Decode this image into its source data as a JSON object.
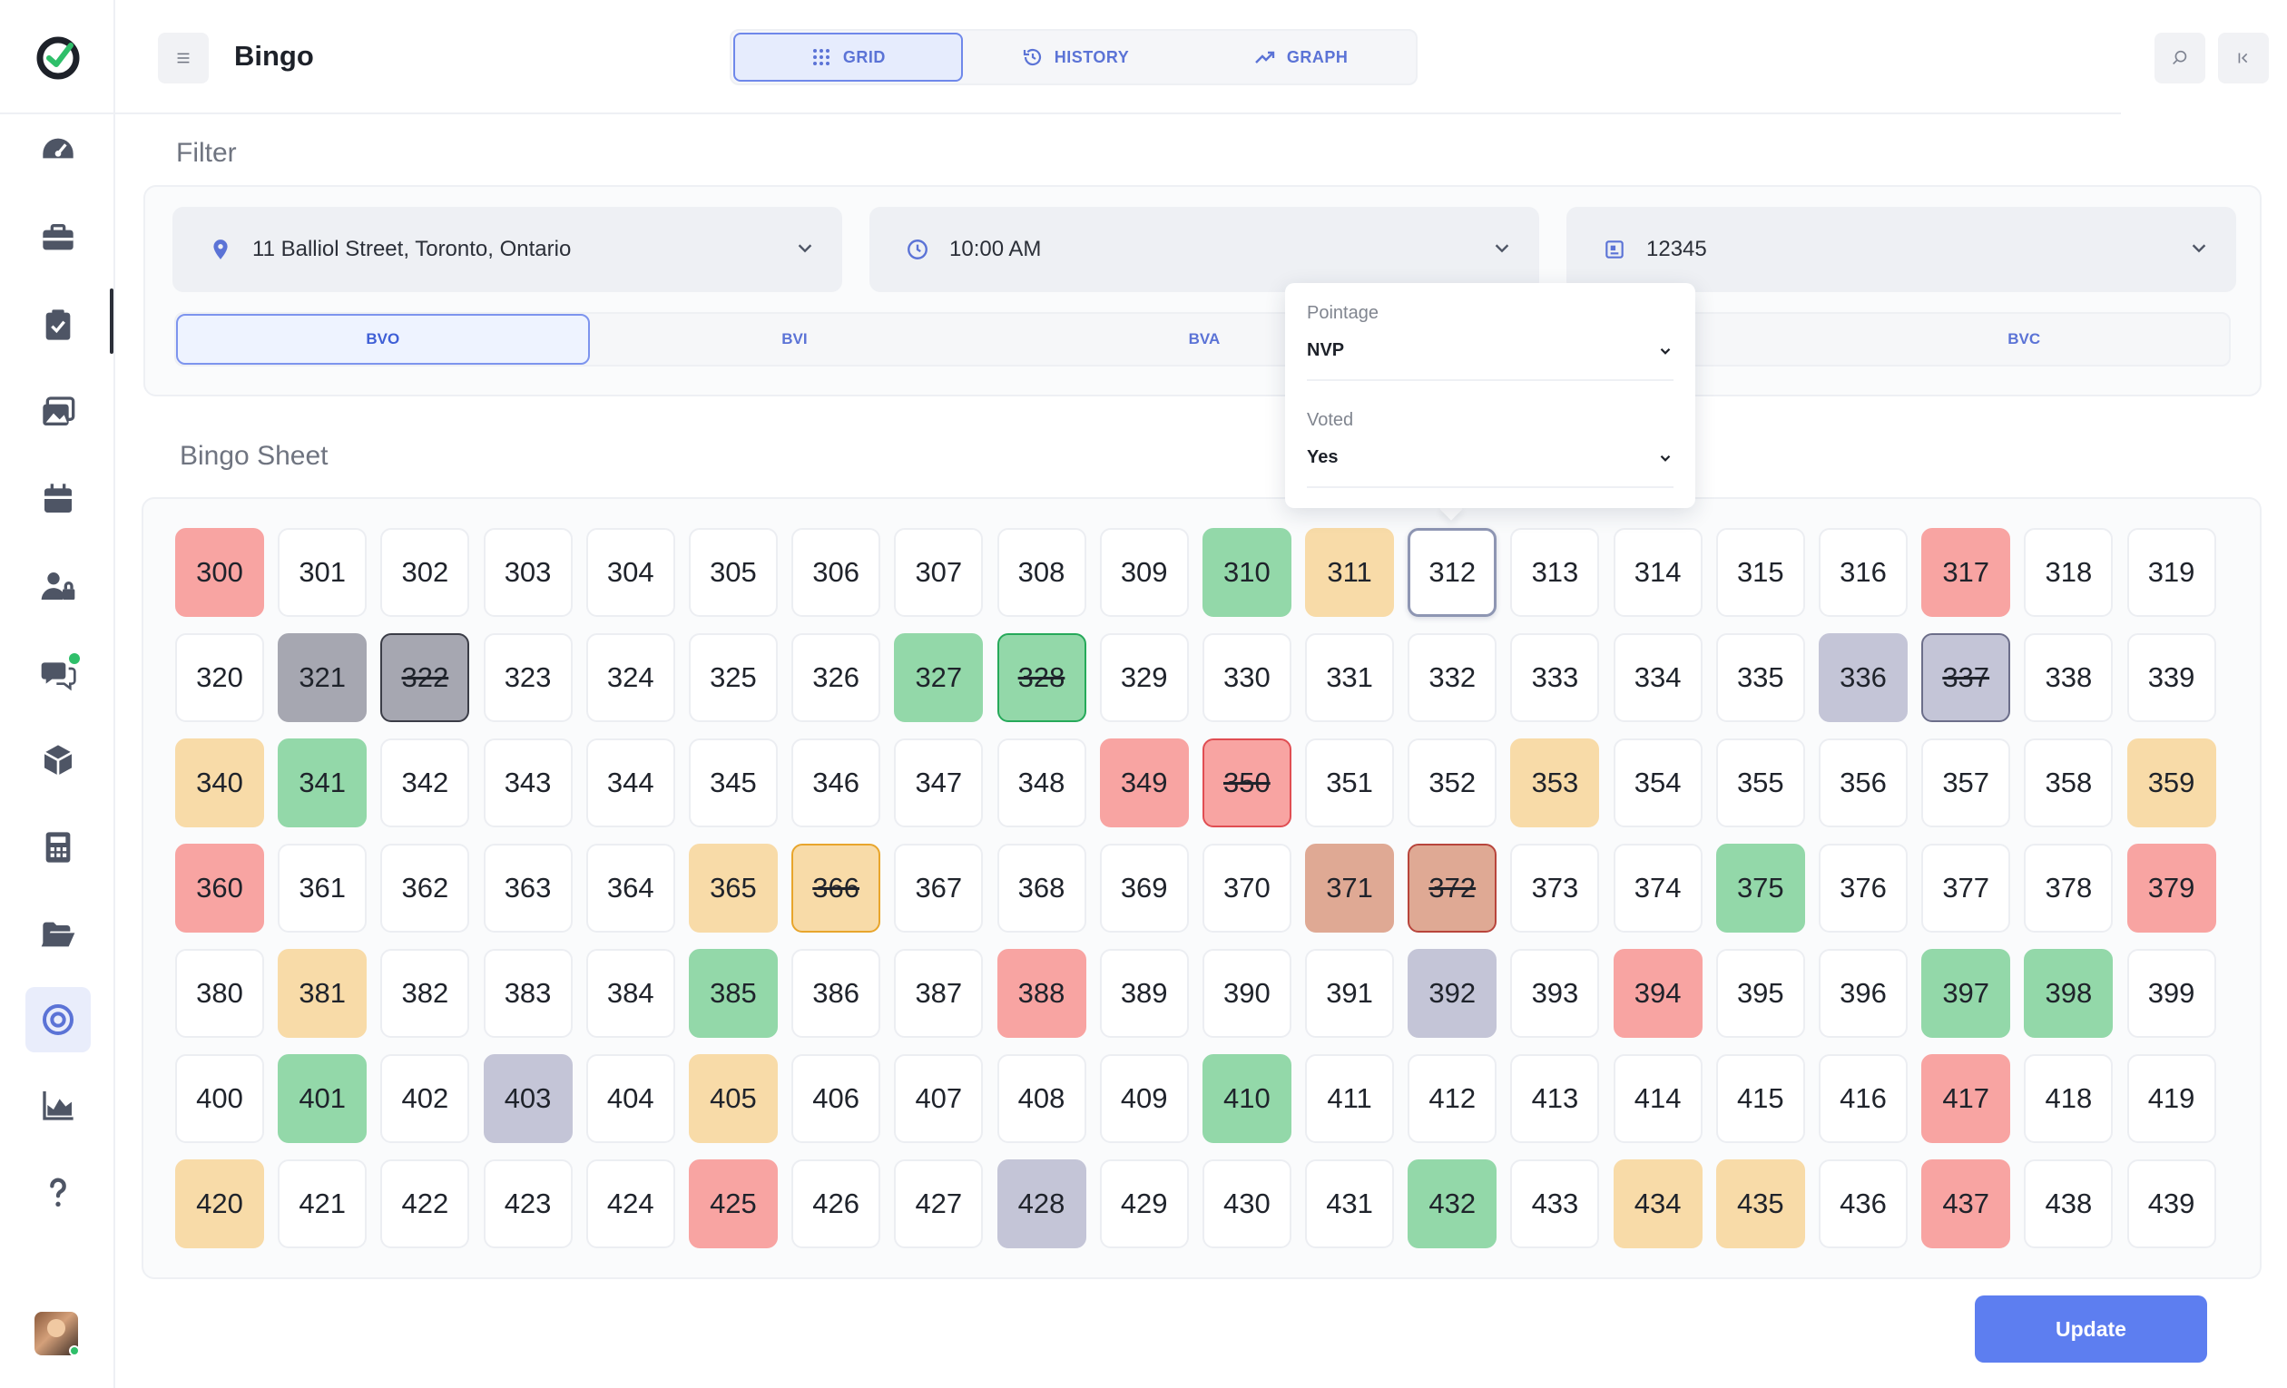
{
  "header": {
    "title": "Bingo",
    "tabs": [
      {
        "label": "GRID",
        "icon": "grid-dots-icon",
        "active": true
      },
      {
        "label": "HISTORY",
        "icon": "history-icon",
        "active": false
      },
      {
        "label": "GRAPH",
        "icon": "graph-trend-icon",
        "active": false
      }
    ]
  },
  "sidebar": {
    "items": [
      "dashboard-gauge-icon",
      "briefcase-icon",
      "clipboard-check-icon",
      "gallery-icon",
      "calendar-icon",
      "user-lock-icon",
      "chat-icon",
      "cube-icon",
      "calculator-icon",
      "folder-open-icon",
      "target-icon",
      "area-chart-icon",
      "help-icon"
    ],
    "active_item": "target-icon"
  },
  "filter": {
    "title": "Filter",
    "address": "11 Balliol Street, Toronto, Ontario",
    "time": "10:00 AM",
    "code": "12345",
    "segments": [
      "BVO",
      "BVI",
      "BVA",
      "",
      "BVC"
    ],
    "active_segment": "BVO"
  },
  "popover": {
    "pointage_label": "Pointage",
    "pointage_value": "NVP",
    "voted_label": "Voted",
    "voted_value": "Yes"
  },
  "bingo": {
    "title": "Bingo Sheet",
    "selected": 312,
    "cells": [
      {
        "n": "300",
        "s": "red"
      },
      {
        "n": "301",
        "s": ""
      },
      {
        "n": "302",
        "s": ""
      },
      {
        "n": "303",
        "s": ""
      },
      {
        "n": "304",
        "s": ""
      },
      {
        "n": "305",
        "s": ""
      },
      {
        "n": "306",
        "s": ""
      },
      {
        "n": "307",
        "s": ""
      },
      {
        "n": "308",
        "s": ""
      },
      {
        "n": "309",
        "s": ""
      },
      {
        "n": "310",
        "s": "green"
      },
      {
        "n": "311",
        "s": "yellow"
      },
      {
        "n": "312",
        "s": "selected"
      },
      {
        "n": "313",
        "s": ""
      },
      {
        "n": "314",
        "s": ""
      },
      {
        "n": "315",
        "s": ""
      },
      {
        "n": "316",
        "s": ""
      },
      {
        "n": "317",
        "s": "red"
      },
      {
        "n": "318",
        "s": ""
      },
      {
        "n": "319",
        "s": ""
      },
      {
        "n": "320",
        "s": ""
      },
      {
        "n": "321",
        "s": "gray"
      },
      {
        "n": "322",
        "s": "gray strike"
      },
      {
        "n": "323",
        "s": ""
      },
      {
        "n": "324",
        "s": ""
      },
      {
        "n": "325",
        "s": ""
      },
      {
        "n": "326",
        "s": ""
      },
      {
        "n": "327",
        "s": "green"
      },
      {
        "n": "328",
        "s": "green strike"
      },
      {
        "n": "329",
        "s": ""
      },
      {
        "n": "330",
        "s": ""
      },
      {
        "n": "331",
        "s": ""
      },
      {
        "n": "332",
        "s": ""
      },
      {
        "n": "333",
        "s": ""
      },
      {
        "n": "334",
        "s": ""
      },
      {
        "n": "335",
        "s": ""
      },
      {
        "n": "336",
        "s": "lav"
      },
      {
        "n": "337",
        "s": "lav strike"
      },
      {
        "n": "338",
        "s": ""
      },
      {
        "n": "339",
        "s": ""
      },
      {
        "n": "340",
        "s": "yellow"
      },
      {
        "n": "341",
        "s": "green"
      },
      {
        "n": "342",
        "s": ""
      },
      {
        "n": "343",
        "s": ""
      },
      {
        "n": "344",
        "s": ""
      },
      {
        "n": "345",
        "s": ""
      },
      {
        "n": "346",
        "s": ""
      },
      {
        "n": "347",
        "s": ""
      },
      {
        "n": "348",
        "s": ""
      },
      {
        "n": "349",
        "s": "red"
      },
      {
        "n": "350",
        "s": "red strike"
      },
      {
        "n": "351",
        "s": ""
      },
      {
        "n": "352",
        "s": ""
      },
      {
        "n": "353",
        "s": "yellow"
      },
      {
        "n": "354",
        "s": ""
      },
      {
        "n": "355",
        "s": ""
      },
      {
        "n": "356",
        "s": ""
      },
      {
        "n": "357",
        "s": ""
      },
      {
        "n": "358",
        "s": ""
      },
      {
        "n": "359",
        "s": "yellow"
      },
      {
        "n": "360",
        "s": "red"
      },
      {
        "n": "361",
        "s": ""
      },
      {
        "n": "362",
        "s": ""
      },
      {
        "n": "363",
        "s": ""
      },
      {
        "n": "364",
        "s": ""
      },
      {
        "n": "365",
        "s": "yellow"
      },
      {
        "n": "366",
        "s": "yellow strike"
      },
      {
        "n": "367",
        "s": ""
      },
      {
        "n": "368",
        "s": ""
      },
      {
        "n": "369",
        "s": ""
      },
      {
        "n": "370",
        "s": ""
      },
      {
        "n": "371",
        "s": "brown"
      },
      {
        "n": "372",
        "s": "brown strike"
      },
      {
        "n": "373",
        "s": ""
      },
      {
        "n": "374",
        "s": ""
      },
      {
        "n": "375",
        "s": "green"
      },
      {
        "n": "376",
        "s": ""
      },
      {
        "n": "377",
        "s": ""
      },
      {
        "n": "378",
        "s": ""
      },
      {
        "n": "379",
        "s": "red"
      },
      {
        "n": "380",
        "s": ""
      },
      {
        "n": "381",
        "s": "yellow"
      },
      {
        "n": "382",
        "s": ""
      },
      {
        "n": "383",
        "s": ""
      },
      {
        "n": "384",
        "s": ""
      },
      {
        "n": "385",
        "s": "green"
      },
      {
        "n": "386",
        "s": ""
      },
      {
        "n": "387",
        "s": ""
      },
      {
        "n": "388",
        "s": "red"
      },
      {
        "n": "389",
        "s": ""
      },
      {
        "n": "390",
        "s": ""
      },
      {
        "n": "391",
        "s": ""
      },
      {
        "n": "392",
        "s": "lav"
      },
      {
        "n": "393",
        "s": ""
      },
      {
        "n": "394",
        "s": "red"
      },
      {
        "n": "395",
        "s": ""
      },
      {
        "n": "396",
        "s": ""
      },
      {
        "n": "397",
        "s": "green"
      },
      {
        "n": "398",
        "s": "green"
      },
      {
        "n": "399",
        "s": ""
      },
      {
        "n": "400",
        "s": ""
      },
      {
        "n": "401",
        "s": "green"
      },
      {
        "n": "402",
        "s": ""
      },
      {
        "n": "403",
        "s": "lav"
      },
      {
        "n": "404",
        "s": ""
      },
      {
        "n": "405",
        "s": "yellow"
      },
      {
        "n": "406",
        "s": ""
      },
      {
        "n": "407",
        "s": ""
      },
      {
        "n": "408",
        "s": ""
      },
      {
        "n": "409",
        "s": ""
      },
      {
        "n": "410",
        "s": "green"
      },
      {
        "n": "411",
        "s": ""
      },
      {
        "n": "412",
        "s": ""
      },
      {
        "n": "413",
        "s": ""
      },
      {
        "n": "414",
        "s": ""
      },
      {
        "n": "415",
        "s": ""
      },
      {
        "n": "416",
        "s": ""
      },
      {
        "n": "417",
        "s": "red"
      },
      {
        "n": "418",
        "s": ""
      },
      {
        "n": "419",
        "s": ""
      },
      {
        "n": "420",
        "s": "yellow"
      },
      {
        "n": "421",
        "s": ""
      },
      {
        "n": "422",
        "s": ""
      },
      {
        "n": "423",
        "s": ""
      },
      {
        "n": "424",
        "s": ""
      },
      {
        "n": "425",
        "s": "red"
      },
      {
        "n": "426",
        "s": ""
      },
      {
        "n": "427",
        "s": ""
      },
      {
        "n": "428",
        "s": "lav"
      },
      {
        "n": "429",
        "s": ""
      },
      {
        "n": "430",
        "s": ""
      },
      {
        "n": "431",
        "s": ""
      },
      {
        "n": "432",
        "s": "green"
      },
      {
        "n": "433",
        "s": ""
      },
      {
        "n": "434",
        "s": "yellow"
      },
      {
        "n": "435",
        "s": "yellow"
      },
      {
        "n": "436",
        "s": ""
      },
      {
        "n": "437",
        "s": "red"
      },
      {
        "n": "438",
        "s": ""
      },
      {
        "n": "439",
        "s": ""
      }
    ]
  },
  "actions": {
    "update_label": "Update"
  },
  "colors": {
    "accent": "#5d7ef0",
    "red": "#f8a4a2",
    "green": "#93d8a9",
    "yellow": "#f8dba8",
    "lavender": "#c4c5d7",
    "gray": "#a6a7b1",
    "brown": "#dfa994"
  }
}
